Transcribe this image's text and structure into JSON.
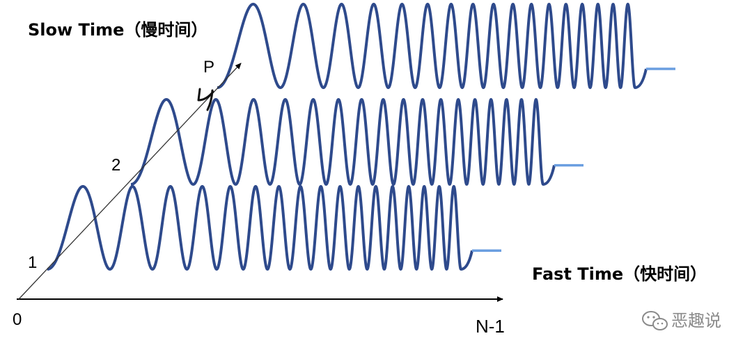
{
  "labels": {
    "slow_time": "Slow Time（慢时间）",
    "fast_time": "Fast Time（快时间）",
    "origin": "0",
    "pulse_1": "1",
    "pulse_2": "2",
    "pulse_p": "P",
    "end_index": "N-1"
  },
  "watermark": {
    "text": "恶趣说",
    "icon": "wechat-icon"
  },
  "colors": {
    "chirp": "#2e4a8c",
    "tail": "#6a9ee0",
    "axis": "#000000",
    "watermark": "#8a8a8a"
  },
  "chirps": [
    {
      "name": "pulse-1",
      "cycles": 17
    },
    {
      "name": "pulse-2",
      "cycles": 17
    },
    {
      "name": "pulse-p",
      "cycles": 17
    }
  ]
}
